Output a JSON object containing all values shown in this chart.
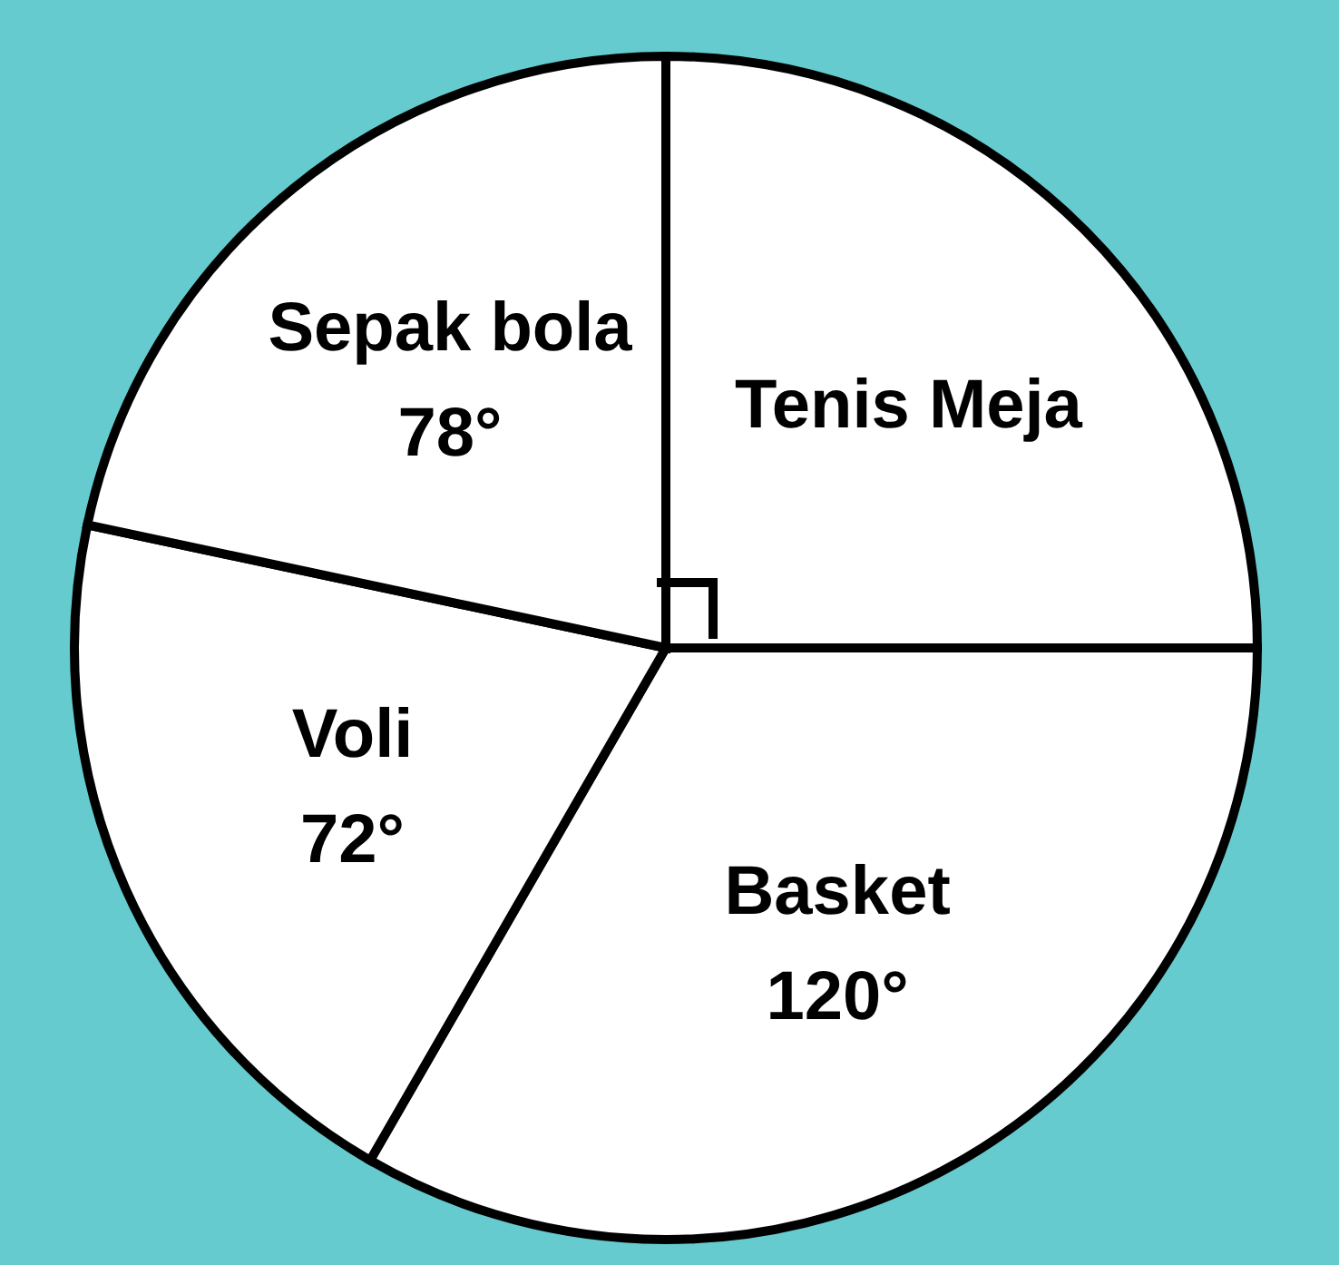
{
  "chart_data": {
    "type": "pie",
    "categories": [
      "Tenis Meja",
      "Basket",
      "Voli",
      "Sepak bola"
    ],
    "values": [
      90,
      120,
      72,
      78
    ],
    "value_labels": [
      null,
      "120°",
      "72°",
      "78°"
    ],
    "colors": [
      "#ffffff",
      "#ffffff",
      "#ffffff",
      "#ffffff"
    ]
  }
}
